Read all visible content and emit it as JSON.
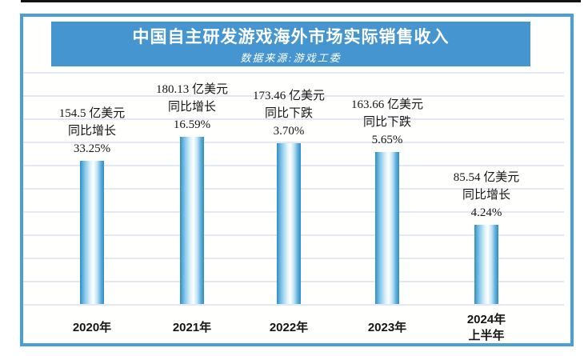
{
  "page": {
    "top_rule_color": "#111111",
    "frame_border_color": "#4b9fd9",
    "background": "#ffffff"
  },
  "header": {
    "title": "中国自主研发游戏海外市场实际销售收入",
    "subtitle": "数据来源:游戏工委",
    "background_color": "#4596d0",
    "text_color": "#ffffff"
  },
  "chart_data": {
    "type": "bar",
    "title": "中国自主研发游戏海外市场实际销售收入",
    "source": "数据来源:游戏工委",
    "unit": "亿美元",
    "grid": true,
    "legend": false,
    "ylim": [
      0,
      260
    ],
    "categories": [
      "2020年",
      "2021年",
      "2022年",
      "2023年",
      "2024年\n上半年"
    ],
    "values": [
      154.5,
      180.13,
      173.46,
      163.66,
      85.54
    ],
    "value_labels": [
      "154.5 亿美元",
      "180.13 亿美元",
      "173.46 亿美元",
      "163.66 亿美元",
      "85.54 亿美元"
    ],
    "yoy_direction_labels": [
      "同比增长",
      "同比增长",
      "同比下跌",
      "同比下跌",
      "同比增长"
    ],
    "yoy_percent_labels": [
      "33.25%",
      "16.59%",
      "3.70%",
      "5.65%",
      "4.24%"
    ],
    "bar_edge_color": "#2e8ec6",
    "bar_highlight_color": "#ffffff",
    "gridline_color": "#e4e8f5"
  }
}
